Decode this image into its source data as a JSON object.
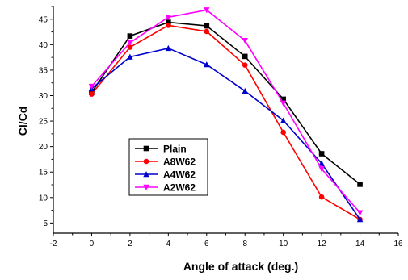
{
  "chart_data": {
    "type": "line",
    "title": "",
    "xlabel": "Angle of attack (deg.)",
    "ylabel": "Cl/Cd",
    "xlim": [
      -2,
      16
    ],
    "ylim": [
      3,
      47.5
    ],
    "x_ticks": [
      "-2",
      "0",
      "2",
      "4",
      "6",
      "8",
      "10",
      "12",
      "14",
      "16"
    ],
    "y_ticks": [
      "5",
      "10",
      "15",
      "20",
      "25",
      "30",
      "35",
      "40",
      "45"
    ],
    "x": [
      0,
      2,
      4,
      6,
      8,
      10,
      12,
      14
    ],
    "series": [
      {
        "name": "Plain",
        "color": "#000000",
        "marker": "square",
        "values": [
          30.6,
          41.7,
          44.4,
          43.7,
          37.7,
          29.3,
          18.6,
          12.6
        ]
      },
      {
        "name": "A8W62",
        "color": "#ff0000",
        "marker": "circle",
        "values": [
          30.3,
          39.5,
          43.8,
          42.6,
          36.0,
          22.8,
          10.1,
          5.7
        ]
      },
      {
        "name": "A4W62",
        "color": "#0000cc",
        "marker": "triangle",
        "values": [
          31.4,
          37.6,
          39.3,
          36.1,
          30.9,
          25.1,
          16.7,
          5.7
        ]
      },
      {
        "name": "A2W62",
        "color": "#ff00ff",
        "marker": "triangle-down",
        "values": [
          31.8,
          40.4,
          45.4,
          46.8,
          40.8,
          28.5,
          15.6,
          7.0
        ]
      }
    ],
    "legend_position": "lower-left",
    "grid": false
  }
}
